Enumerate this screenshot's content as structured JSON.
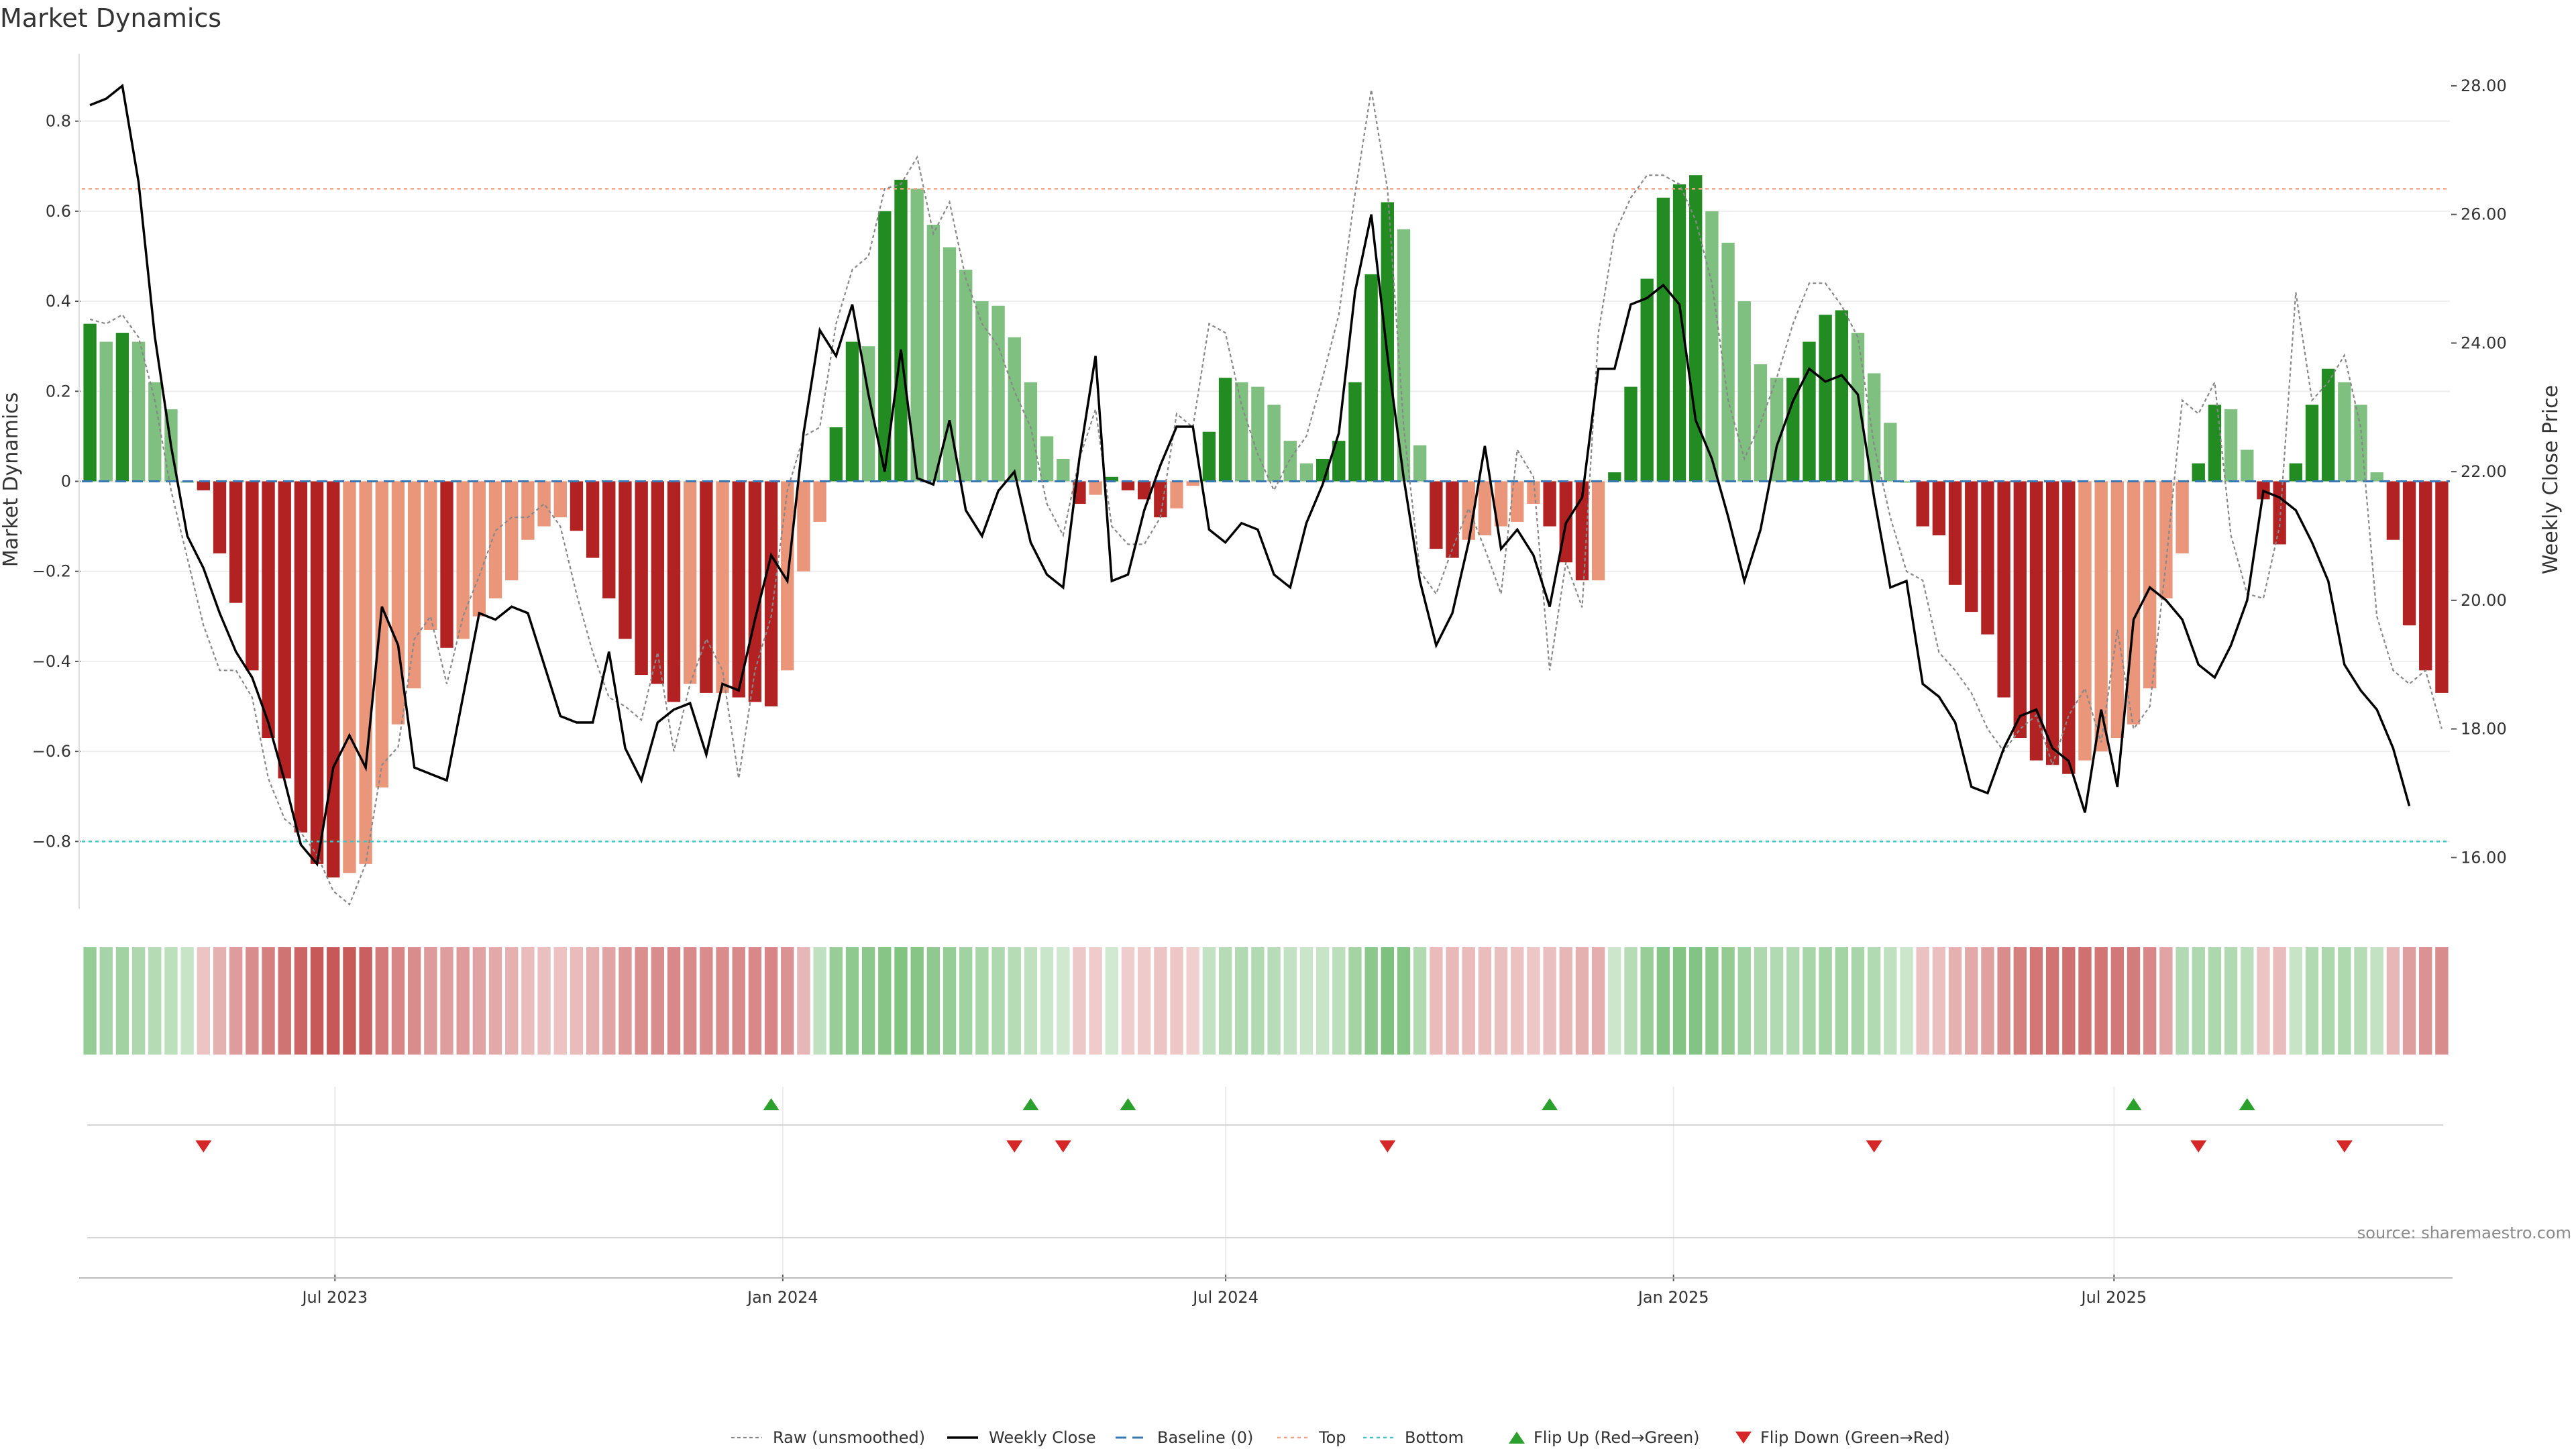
{
  "chart_data": {
    "type": "bar",
    "title": "Market Dynamics",
    "ylabel_left": "Market Dynamics",
    "ylabel_right": "Weekly Close Price",
    "ylim_left": [
      -0.95,
      0.95
    ],
    "ylim_right": [
      15.2,
      28.5
    ],
    "yticks_left": [
      "0.8",
      "0.6",
      "0.4",
      "0.2",
      "0",
      "−0.2",
      "−0.4",
      "−0.6",
      "−0.8"
    ],
    "yticks_right": [
      "28.00",
      "26.00",
      "24.00",
      "22.00",
      "20.00",
      "18.00",
      "16.00"
    ],
    "x_start": "2023-03-19",
    "x_end": "2025-11-16",
    "date_ticks": [
      {
        "label": "Jul 2023",
        "date": "2023-07-01"
      },
      {
        "label": "Jan 2024",
        "date": "2024-01-01"
      },
      {
        "label": "Jul 2024",
        "date": "2024-07-01"
      },
      {
        "label": "Jan 2025",
        "date": "2025-01-01"
      },
      {
        "label": "Jul 2025",
        "date": "2025-07-01"
      }
    ],
    "top_line": 0.65,
    "bottom_line": -0.8,
    "baseline": 0,
    "dynamics": [
      0.35,
      0.31,
      0.33,
      0.31,
      0.22,
      0.16,
      0.0,
      -0.02,
      -0.16,
      -0.27,
      -0.42,
      -0.57,
      -0.66,
      -0.78,
      -0.85,
      -0.88,
      -0.87,
      -0.85,
      -0.68,
      -0.54,
      -0.46,
      -0.33,
      -0.37,
      -0.35,
      -0.3,
      -0.26,
      -0.22,
      -0.13,
      -0.1,
      -0.08,
      -0.11,
      -0.17,
      -0.26,
      -0.35,
      -0.43,
      -0.45,
      -0.49,
      -0.45,
      -0.47,
      -0.47,
      -0.48,
      -0.49,
      -0.5,
      -0.42,
      -0.2,
      -0.09,
      0.12,
      0.31,
      0.3,
      0.6,
      0.67,
      0.65,
      0.57,
      0.52,
      0.47,
      0.4,
      0.39,
      0.32,
      0.22,
      0.1,
      0.05,
      -0.05,
      -0.03,
      0.01,
      -0.02,
      -0.04,
      -0.08,
      -0.06,
      -0.01,
      0.11,
      0.23,
      0.22,
      0.21,
      0.17,
      0.09,
      0.04,
      0.05,
      0.09,
      0.22,
      0.46,
      0.62,
      0.56,
      0.08,
      -0.15,
      -0.17,
      -0.13,
      -0.12,
      -0.1,
      -0.09,
      -0.05,
      -0.1,
      -0.18,
      -0.22,
      -0.22,
      0.02,
      0.21,
      0.45,
      0.63,
      0.66,
      0.68,
      0.6,
      0.53,
      0.4,
      0.26,
      0.23,
      0.23,
      0.31,
      0.37,
      0.38,
      0.33,
      0.24,
      0.13,
      0.0,
      -0.1,
      -0.12,
      -0.23,
      -0.29,
      -0.34,
      -0.48,
      -0.57,
      -0.62,
      -0.63,
      -0.65,
      -0.62,
      -0.6,
      -0.57,
      -0.54,
      -0.46,
      -0.26,
      -0.16,
      0.04,
      0.17,
      0.16,
      0.07,
      -0.04,
      -0.14,
      0.04,
      0.17,
      0.25,
      0.22,
      0.17,
      0.02,
      -0.13,
      -0.32,
      -0.42,
      -0.47
    ],
    "weekly_close": [
      27.7,
      27.8,
      28.0,
      26.5,
      24.1,
      22.4,
      21.0,
      20.5,
      19.8,
      19.2,
      18.8,
      18.1,
      17.2,
      16.2,
      15.9,
      17.4,
      17.9,
      17.4,
      19.9,
      19.3,
      17.4,
      17.3,
      17.2,
      18.5,
      19.8,
      19.7,
      19.9,
      19.8,
      19.0,
      18.2,
      18.1,
      18.1,
      19.2,
      17.7,
      17.2,
      18.1,
      18.3,
      18.4,
      17.6,
      18.7,
      18.6,
      19.7,
      20.7,
      20.3,
      22.6,
      24.2,
      23.8,
      24.6,
      23.2,
      22.0,
      23.9,
      21.9,
      21.8,
      22.8,
      21.4,
      21.0,
      21.7,
      22.0,
      20.9,
      20.4,
      20.2,
      22.2,
      23.8,
      20.3,
      20.4,
      21.4,
      22.1,
      22.7,
      22.7,
      21.1,
      20.9,
      21.2,
      21.1,
      20.4,
      20.2,
      21.2,
      21.8,
      22.6,
      24.8,
      26.0,
      23.8,
      21.9,
      20.3,
      19.3,
      19.8,
      20.9,
      22.4,
      20.8,
      21.1,
      20.7,
      19.9,
      21.2,
      21.6,
      23.6,
      23.6,
      24.6,
      24.7,
      24.9,
      24.6,
      22.8,
      22.2,
      21.3,
      20.3,
      21.1,
      22.4,
      23.1,
      23.6,
      23.4,
      23.5,
      23.2,
      21.6,
      20.2,
      20.3,
      18.7,
      18.5,
      18.1,
      17.1,
      17.0,
      17.7,
      18.2,
      18.3,
      17.7,
      17.5,
      16.7,
      18.3,
      17.1,
      19.7,
      20.2,
      20.0,
      19.7,
      19.0,
      18.8,
      19.3,
      20.0,
      21.7,
      21.6,
      21.4,
      20.9,
      20.3,
      19.0,
      18.6,
      18.3,
      17.7,
      16.8
    ],
    "raw": [
      0.36,
      0.35,
      0.37,
      0.32,
      0.18,
      -0.02,
      -0.17,
      -0.32,
      -0.42,
      -0.42,
      -0.48,
      -0.66,
      -0.75,
      -0.78,
      -0.83,
      -0.91,
      -0.94,
      -0.85,
      -0.63,
      -0.59,
      -0.35,
      -0.3,
      -0.45,
      -0.3,
      -0.21,
      -0.11,
      -0.08,
      -0.08,
      -0.05,
      -0.1,
      -0.25,
      -0.38,
      -0.48,
      -0.5,
      -0.53,
      -0.38,
      -0.6,
      -0.45,
      -0.35,
      -0.42,
      -0.66,
      -0.42,
      -0.3,
      -0.02,
      0.1,
      0.12,
      0.35,
      0.47,
      0.5,
      0.65,
      0.66,
      0.72,
      0.55,
      0.62,
      0.45,
      0.35,
      0.3,
      0.2,
      0.12,
      -0.05,
      -0.12,
      0.05,
      0.16,
      -0.1,
      -0.14,
      -0.14,
      -0.08,
      0.15,
      0.12,
      0.35,
      0.33,
      0.17,
      0.06,
      -0.02,
      0.05,
      0.1,
      0.23,
      0.37,
      0.64,
      0.87,
      0.65,
      0.12,
      -0.2,
      -0.25,
      -0.15,
      -0.06,
      -0.15,
      -0.25,
      0.07,
      0.01,
      -0.42,
      -0.18,
      -0.28,
      0.33,
      0.55,
      0.63,
      0.68,
      0.68,
      0.66,
      0.58,
      0.44,
      0.18,
      0.05,
      0.13,
      0.23,
      0.35,
      0.44,
      0.44,
      0.39,
      0.32,
      0.08,
      -0.08,
      -0.2,
      -0.22,
      -0.38,
      -0.42,
      -0.47,
      -0.55,
      -0.6,
      -0.55,
      -0.52,
      -0.63,
      -0.52,
      -0.46,
      -0.58,
      -0.33,
      -0.55,
      -0.5,
      -0.18,
      0.18,
      0.15,
      0.22,
      -0.12,
      -0.25,
      -0.26,
      -0.1,
      0.42,
      0.18,
      0.22,
      0.28,
      0.12,
      -0.3,
      -0.42,
      -0.45,
      -0.42,
      -0.55
    ],
    "band": [
      0.36,
      0.27,
      0.29,
      0.23,
      0.19,
      0.14,
      0.08,
      -0.07,
      -0.18,
      -0.29,
      -0.38,
      -0.45,
      -0.52,
      -0.59,
      -0.66,
      -0.67,
      -0.66,
      -0.63,
      -0.48,
      -0.42,
      -0.38,
      -0.3,
      -0.28,
      -0.3,
      -0.26,
      -0.22,
      -0.18,
      -0.12,
      -0.1,
      -0.08,
      -0.12,
      -0.18,
      -0.25,
      -0.32,
      -0.37,
      -0.38,
      -0.4,
      -0.39,
      -0.38,
      -0.38,
      -0.39,
      -0.4,
      -0.42,
      -0.35,
      -0.15,
      0.12,
      0.35,
      0.4,
      0.42,
      0.45,
      0.48,
      0.45,
      0.4,
      0.36,
      0.3,
      0.25,
      0.22,
      0.18,
      0.12,
      0.06,
      0.03,
      -0.05,
      -0.03,
      0.02,
      -0.02,
      -0.04,
      -0.07,
      -0.06,
      -0.01,
      0.1,
      0.18,
      0.2,
      0.2,
      0.17,
      0.1,
      0.06,
      0.08,
      0.15,
      0.28,
      0.42,
      0.5,
      0.45,
      0.2,
      -0.12,
      -0.13,
      -0.12,
      -0.11,
      -0.1,
      -0.09,
      -0.06,
      -0.1,
      -0.15,
      -0.18,
      -0.19,
      0.05,
      0.18,
      0.35,
      0.45,
      0.47,
      0.47,
      0.42,
      0.38,
      0.3,
      0.22,
      0.2,
      0.2,
      0.25,
      0.28,
      0.28,
      0.25,
      0.2,
      0.12,
      0.05,
      -0.09,
      -0.1,
      -0.18,
      -0.22,
      -0.27,
      -0.38,
      -0.45,
      -0.5,
      -0.52,
      -0.54,
      -0.53,
      -0.51,
      -0.49,
      -0.47,
      -0.4,
      -0.25,
      0.2,
      0.22,
      0.23,
      0.2,
      0.15,
      -0.07,
      -0.12,
      0.08,
      0.2,
      0.23,
      0.22,
      0.18,
      0.1,
      -0.15,
      -0.28,
      -0.35,
      -0.38
    ],
    "flip_up_index": [
      42,
      58,
      64,
      90,
      126,
      133
    ],
    "flip_down_index": [
      7,
      57,
      60,
      80,
      110,
      130,
      139
    ],
    "colors": {
      "strong_green": "#228b22",
      "light_green": "#7fbf7f",
      "strong_red": "#b22222",
      "light_red": "#e9967a",
      "top_line": "#f4a582",
      "bottom_line": "#40c4c4",
      "baseline": "#3a78b5",
      "close": "#000000",
      "raw": "#888888",
      "marker_up": "#2ca02c",
      "marker_down": "#d62728"
    },
    "legend": [
      {
        "label": "Raw (unsmoothed)",
        "style": "raw"
      },
      {
        "label": "Weekly Close",
        "style": "close"
      },
      {
        "label": "Baseline (0)",
        "style": "baseline"
      },
      {
        "label": "Top",
        "style": "top"
      },
      {
        "label": "Bottom",
        "style": "bottom"
      },
      {
        "label": "Flip Up (Red→Green)",
        "style": "up"
      },
      {
        "label": "Flip Down (Green→Red)",
        "style": "down"
      }
    ],
    "source": "source: sharemaestro.com"
  }
}
